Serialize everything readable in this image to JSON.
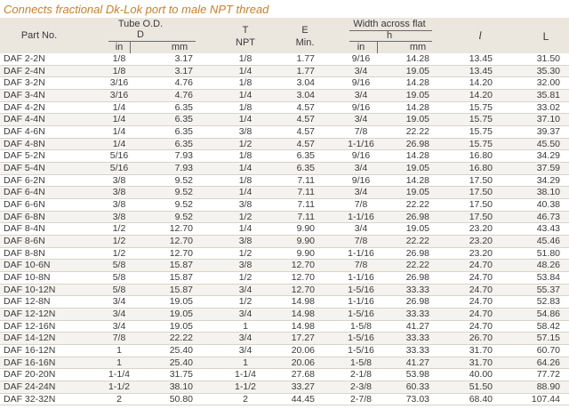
{
  "title": "Connects fractional  Dk-Lok port to male NPT thread",
  "header": {
    "part_no": "Part No.",
    "tube_od": "Tube O.D.",
    "tube_d": "D",
    "tube_in": "in",
    "tube_mm": "mm",
    "t": "T",
    "npt": "NPT",
    "e": "E",
    "min": "Min.",
    "width": "Width across flat",
    "h": "h",
    "w_in": "in",
    "w_mm": "mm",
    "l_small": "l",
    "l_big": "L"
  },
  "rows": [
    [
      "DAF 2-2N",
      "1/8",
      "3.17",
      "1/8",
      "1.77",
      "9/16",
      "14.28",
      "13.45",
      "31.50"
    ],
    [
      "DAF 2-4N",
      "1/8",
      "3.17",
      "1/4",
      "1.77",
      "3/4",
      "19.05",
      "13.45",
      "35.30"
    ],
    [
      "DAF 3-2N",
      "3/16",
      "4.76",
      "1/8",
      "3.04",
      "9/16",
      "14.28",
      "14.20",
      "32.00"
    ],
    [
      "DAF 3-4N",
      "3/16",
      "4.76",
      "1/4",
      "3.04",
      "3/4",
      "19.05",
      "14.20",
      "35.81"
    ],
    [
      "DAF 4-2N",
      "1/4",
      "6.35",
      "1/8",
      "4.57",
      "9/16",
      "14.28",
      "15.75",
      "33.02"
    ],
    [
      "DAF 4-4N",
      "1/4",
      "6.35",
      "1/4",
      "4.57",
      "3/4",
      "19.05",
      "15.75",
      "37.10"
    ],
    [
      "DAF 4-6N",
      "1/4",
      "6.35",
      "3/8",
      "4.57",
      "7/8",
      "22.22",
      "15.75",
      "39.37"
    ],
    [
      "DAF 4-8N",
      "1/4",
      "6.35",
      "1/2",
      "4.57",
      "1-1/16",
      "26.98",
      "15.75",
      "45.50"
    ],
    [
      "DAF 5-2N",
      "5/16",
      "7.93",
      "1/8",
      "6.35",
      "9/16",
      "14.28",
      "16.80",
      "34.29"
    ],
    [
      "DAF 5-4N",
      "5/16",
      "7.93",
      "1/4",
      "6.35",
      "3/4",
      "19.05",
      "16.80",
      "37.59"
    ],
    [
      "DAF 6-2N",
      "3/8",
      "9.52",
      "1/8",
      "7.11",
      "9/16",
      "14.28",
      "17.50",
      "34.29"
    ],
    [
      "DAF 6-4N",
      "3/8",
      "9.52",
      "1/4",
      "7.11",
      "3/4",
      "19.05",
      "17.50",
      "38.10"
    ],
    [
      "DAF 6-6N",
      "3/8",
      "9.52",
      "3/8",
      "7.11",
      "7/8",
      "22.22",
      "17.50",
      "40.38"
    ],
    [
      "DAF 6-8N",
      "3/8",
      "9.52",
      "1/2",
      "7.11",
      "1-1/16",
      "26.98",
      "17.50",
      "46.73"
    ],
    [
      "DAF 8-4N",
      "1/2",
      "12.70",
      "1/4",
      "9.90",
      "3/4",
      "19.05",
      "23.20",
      "43.43"
    ],
    [
      "DAF 8-6N",
      "1/2",
      "12.70",
      "3/8",
      "9.90",
      "7/8",
      "22.22",
      "23.20",
      "45.46"
    ],
    [
      "DAF 8-8N",
      "1/2",
      "12.70",
      "1/2",
      "9.90",
      "1-1/16",
      "26.98",
      "23.20",
      "51.80"
    ],
    [
      "DAF 10-6N",
      "5/8",
      "15.87",
      "3/8",
      "12.70",
      "7/8",
      "22.22",
      "24.70",
      "48.26"
    ],
    [
      "DAF 10-8N",
      "5/8",
      "15.87",
      "1/2",
      "12.70",
      "1-1/16",
      "26.98",
      "24.70",
      "53.84"
    ],
    [
      "DAF 10-12N",
      "5/8",
      "15.87",
      "3/4",
      "12.70",
      "1-5/16",
      "33.33",
      "24.70",
      "55.37"
    ],
    [
      "DAF 12-8N",
      "3/4",
      "19.05",
      "1/2",
      "14.98",
      "1-1/16",
      "26.98",
      "24.70",
      "52.83"
    ],
    [
      "DAF 12-12N",
      "3/4",
      "19.05",
      "3/4",
      "14.98",
      "1-5/16",
      "33.33",
      "24.70",
      "54.86"
    ],
    [
      "DAF 12-16N",
      "3/4",
      "19.05",
      "1",
      "14.98",
      "1-5/8",
      "41.27",
      "24.70",
      "58.42"
    ],
    [
      "DAF 14-12N",
      "7/8",
      "22.22",
      "3/4",
      "17.27",
      "1-5/16",
      "33.33",
      "26.70",
      "57.15"
    ],
    [
      "DAF 16-12N",
      "1",
      "25.40",
      "3/4",
      "20.06",
      "1-5/16",
      "33.33",
      "31.70",
      "60.70"
    ],
    [
      "DAF 16-16N",
      "1",
      "25.40",
      "1",
      "20.06",
      "1-5/8",
      "41.27",
      "31.70",
      "64.26"
    ],
    [
      "DAF 20-20N",
      "1-1/4",
      "31.75",
      "1-1/4",
      "27.68",
      "2-1/8",
      "53.98",
      "40.00",
      "77.72"
    ],
    [
      "DAF 24-24N",
      "1-1/2",
      "38.10",
      "1-1/2",
      "33.27",
      "2-3/8",
      "60.33",
      "51.50",
      "88.90"
    ],
    [
      "DAF 32-32N",
      "2",
      "50.80",
      "2",
      "44.45",
      "2-7/8",
      "73.03",
      "68.40",
      "107.44"
    ]
  ]
}
